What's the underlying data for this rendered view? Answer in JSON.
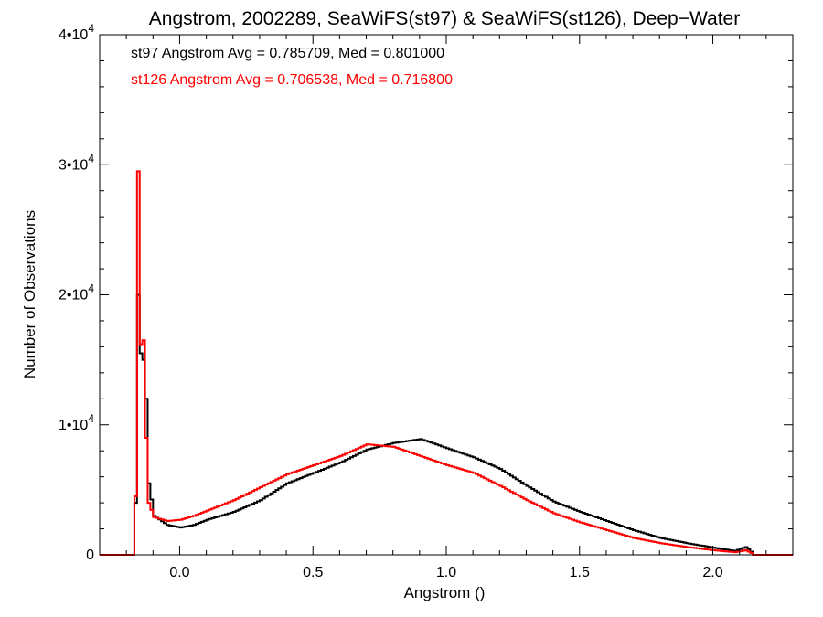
{
  "chart_data": {
    "type": "line",
    "style": "step-histogram",
    "title": "Angstrom, 2002289, SeaWiFS(st97) & SeaWiFS(st126), Deep−Water",
    "xlabel": "Angstrom ()",
    "ylabel": "Number of Observations",
    "xlim": [
      -0.3,
      2.3
    ],
    "ylim": [
      0,
      40000
    ],
    "x_ticks": [
      0.0,
      0.5,
      1.0,
      1.5,
      2.0
    ],
    "x_tick_labels": [
      "0.0",
      "0.5",
      "1.0",
      "1.5",
      "2.0"
    ],
    "y_ticks": [
      0,
      10000,
      20000,
      30000,
      40000
    ],
    "y_tick_labels": [
      {
        "base": "0",
        "exp": ""
      },
      {
        "base": "1•10",
        "exp": "4"
      },
      {
        "base": "2•10",
        "exp": "4"
      },
      {
        "base": "3•10",
        "exp": "4"
      },
      {
        "base": "4•10",
        "exp": "4"
      }
    ],
    "grid": false,
    "annotations": [
      {
        "text": "st97 Angstrom Avg = 0.785709, Med = 0.801000",
        "color": "#000000"
      },
      {
        "text": "st126 Angstrom Avg = 0.706538, Med = 0.716800",
        "color": "#ff0000"
      }
    ],
    "series": [
      {
        "color": "#000000",
        "points": [
          [
            -0.3,
            0
          ],
          [
            -0.18,
            0
          ],
          [
            -0.17,
            4000
          ],
          [
            -0.16,
            20000
          ],
          [
            -0.15,
            15500
          ],
          [
            -0.14,
            15000
          ],
          [
            -0.13,
            12000
          ],
          [
            -0.12,
            5500
          ],
          [
            -0.1,
            3000
          ],
          [
            -0.05,
            2300
          ],
          [
            0.0,
            2100
          ],
          [
            0.05,
            2300
          ],
          [
            0.1,
            2700
          ],
          [
            0.2,
            3300
          ],
          [
            0.3,
            4200
          ],
          [
            0.4,
            5500
          ],
          [
            0.5,
            6300
          ],
          [
            0.6,
            7100
          ],
          [
            0.7,
            8100
          ],
          [
            0.8,
            8600
          ],
          [
            0.9,
            8900
          ],
          [
            0.93,
            8700
          ],
          [
            1.0,
            8200
          ],
          [
            1.1,
            7500
          ],
          [
            1.2,
            6600
          ],
          [
            1.3,
            5300
          ],
          [
            1.4,
            4100
          ],
          [
            1.5,
            3300
          ],
          [
            1.6,
            2600
          ],
          [
            1.7,
            1900
          ],
          [
            1.8,
            1300
          ],
          [
            1.9,
            900
          ],
          [
            2.0,
            550
          ],
          [
            2.08,
            300
          ],
          [
            2.12,
            600
          ],
          [
            2.14,
            250
          ],
          [
            2.15,
            0
          ],
          [
            2.3,
            0
          ]
        ]
      },
      {
        "color": "#ff0000",
        "points": [
          [
            -0.3,
            0
          ],
          [
            -0.18,
            0
          ],
          [
            -0.17,
            4500
          ],
          [
            -0.16,
            29500
          ],
          [
            -0.15,
            16200
          ],
          [
            -0.14,
            16500
          ],
          [
            -0.13,
            9000
          ],
          [
            -0.12,
            4000
          ],
          [
            -0.1,
            2900
          ],
          [
            -0.05,
            2600
          ],
          [
            0.0,
            2700
          ],
          [
            0.05,
            3000
          ],
          [
            0.1,
            3400
          ],
          [
            0.2,
            4200
          ],
          [
            0.3,
            5200
          ],
          [
            0.4,
            6200
          ],
          [
            0.5,
            6900
          ],
          [
            0.6,
            7600
          ],
          [
            0.7,
            8500
          ],
          [
            0.8,
            8300
          ],
          [
            0.9,
            7600
          ],
          [
            1.0,
            6900
          ],
          [
            1.1,
            6300
          ],
          [
            1.2,
            5300
          ],
          [
            1.3,
            4200
          ],
          [
            1.4,
            3200
          ],
          [
            1.5,
            2500
          ],
          [
            1.6,
            1900
          ],
          [
            1.7,
            1300
          ],
          [
            1.8,
            900
          ],
          [
            1.9,
            600
          ],
          [
            2.0,
            350
          ],
          [
            2.08,
            200
          ],
          [
            2.12,
            350
          ],
          [
            2.14,
            150
          ],
          [
            2.15,
            0
          ],
          [
            2.3,
            0
          ]
        ]
      }
    ]
  }
}
